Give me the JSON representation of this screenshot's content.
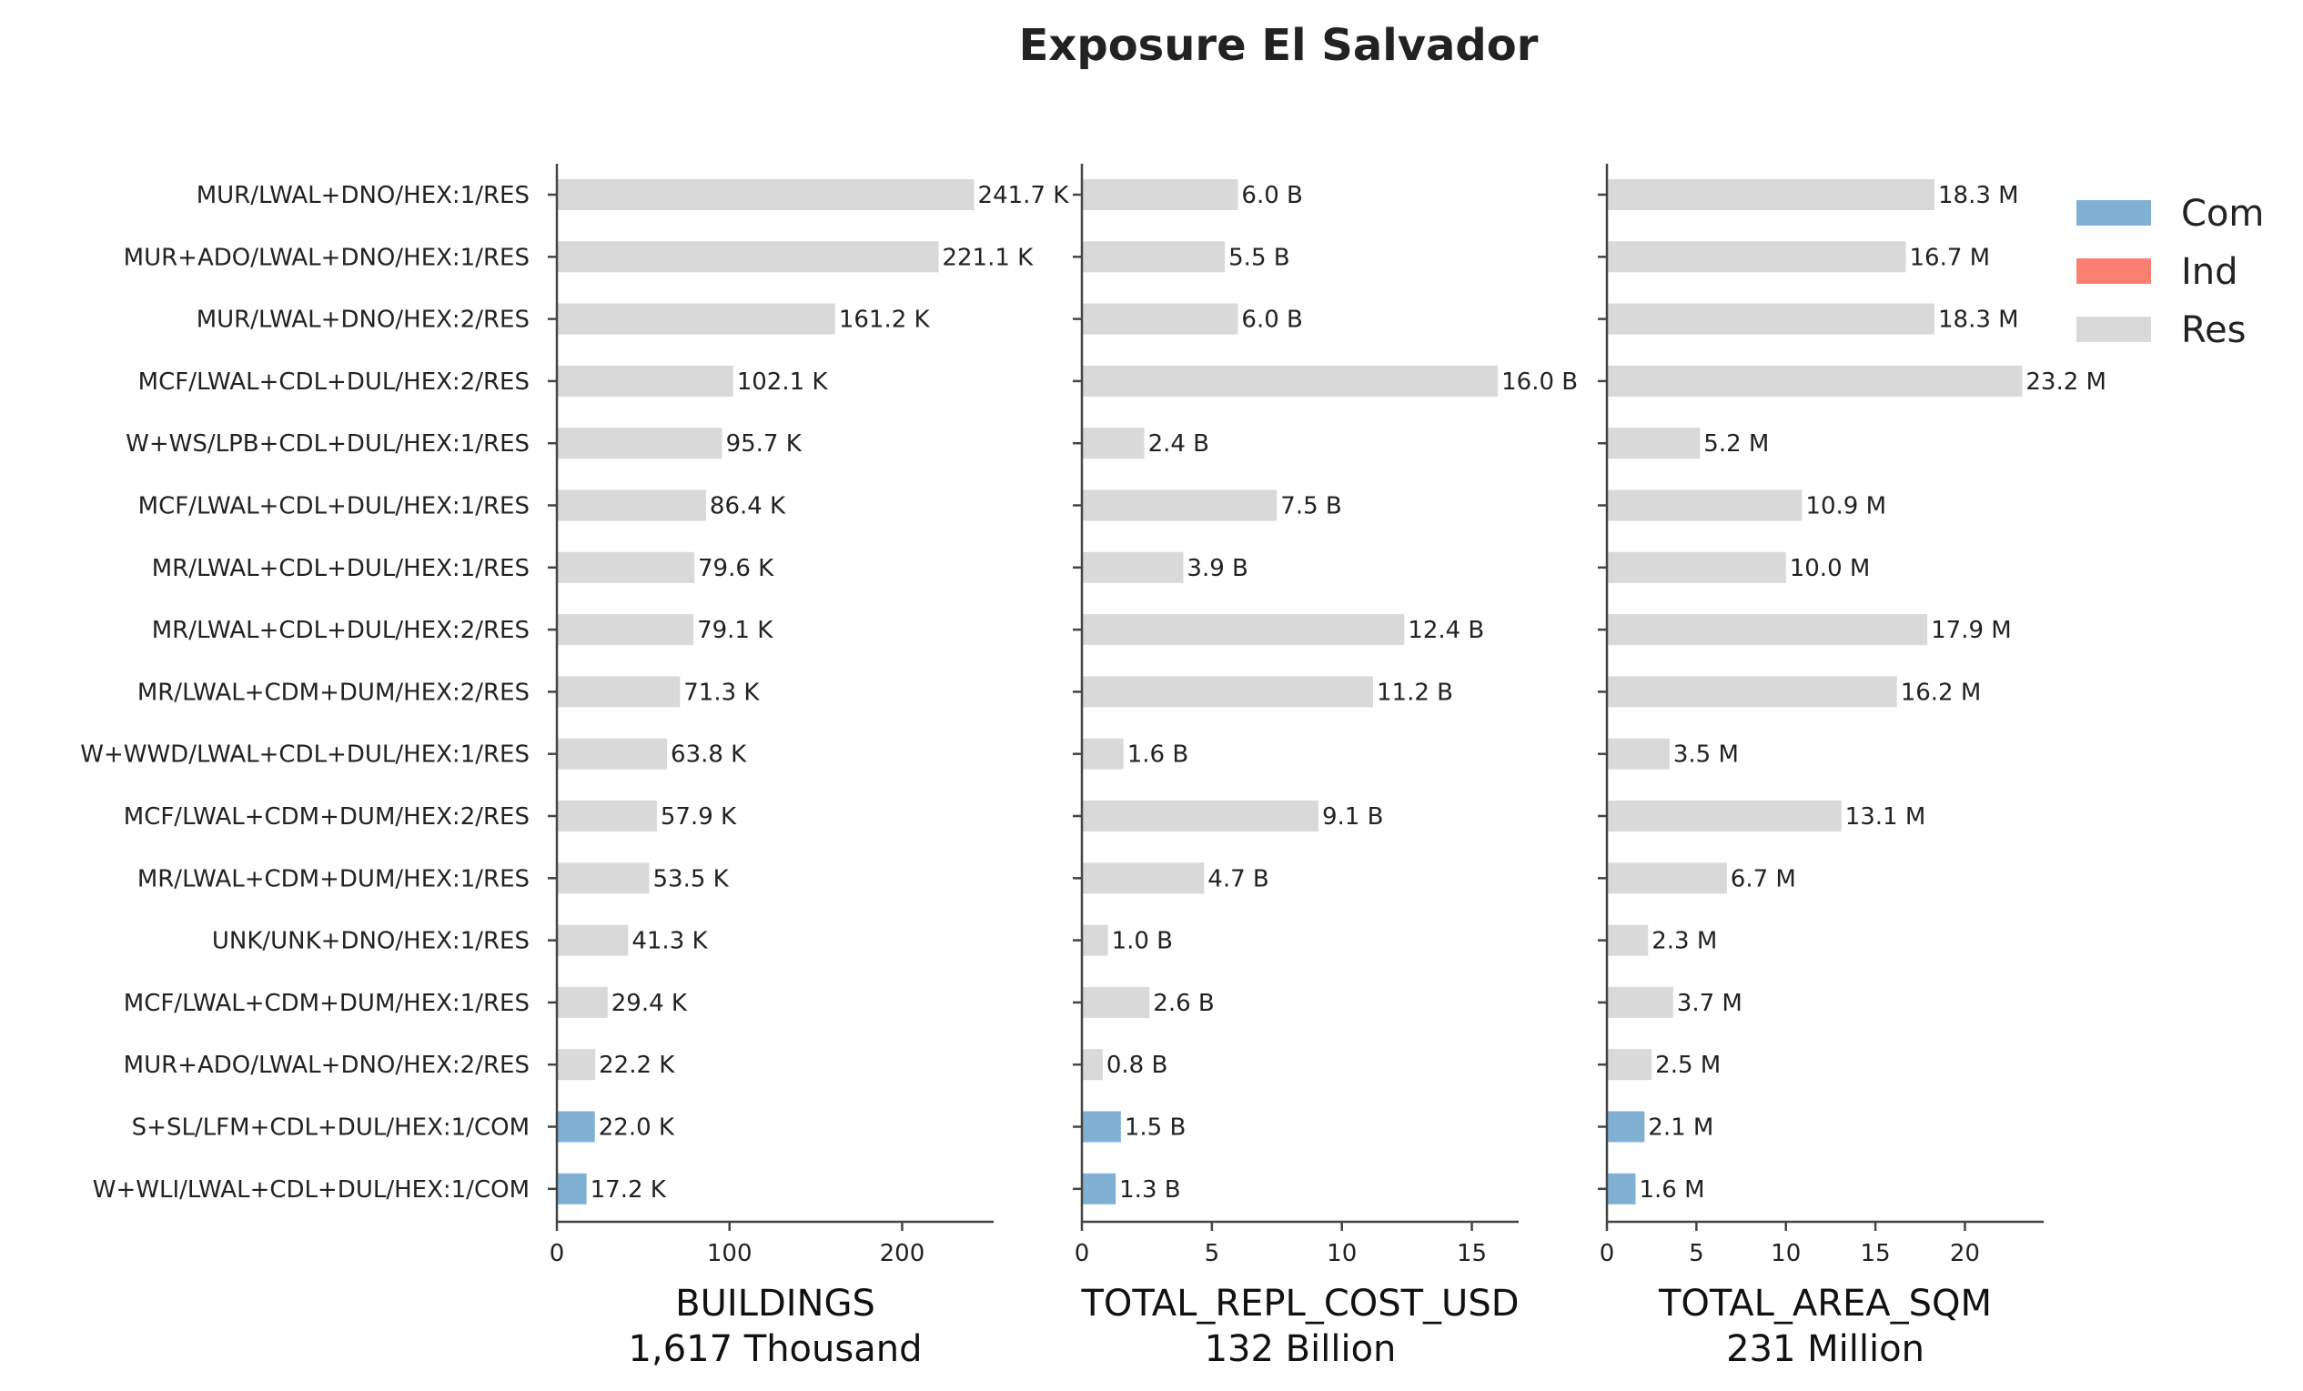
{
  "chart_data": {
    "type": "bar",
    "orientation": "horizontal",
    "title": "Exposure El Salvador",
    "categories": [
      "MUR/LWAL+DNO/HEX:1/RES",
      "MUR+ADO/LWAL+DNO/HEX:1/RES",
      "MUR/LWAL+DNO/HEX:2/RES",
      "MCF/LWAL+CDL+DUL/HEX:2/RES",
      "W+WS/LPB+CDL+DUL/HEX:1/RES",
      "MCF/LWAL+CDL+DUL/HEX:1/RES",
      "MR/LWAL+CDL+DUL/HEX:1/RES",
      "MR/LWAL+CDL+DUL/HEX:2/RES",
      "MR/LWAL+CDM+DUM/HEX:2/RES",
      "W+WWD/LWAL+CDL+DUL/HEX:1/RES",
      "MCF/LWAL+CDM+DUM/HEX:2/RES",
      "MR/LWAL+CDM+DUM/HEX:1/RES",
      "UNK/UNK+DNO/HEX:1/RES",
      "MCF/LWAL+CDM+DUM/HEX:1/RES",
      "MUR+ADO/LWAL+DNO/HEX:2/RES",
      "S+SL/LFM+CDL+DUL/HEX:1/COM",
      "W+WLI/LWAL+CDL+DUL/HEX:1/COM"
    ],
    "occupancy": [
      "Res",
      "Res",
      "Res",
      "Res",
      "Res",
      "Res",
      "Res",
      "Res",
      "Res",
      "Res",
      "Res",
      "Res",
      "Res",
      "Res",
      "Res",
      "Com",
      "Com"
    ],
    "legend": {
      "placement": "top-right",
      "entries": [
        {
          "name": "Com",
          "color": "#80b1d3"
        },
        {
          "name": "Ind",
          "color": "#fb8072"
        },
        {
          "name": "Res",
          "color": "#d9d9d9"
        }
      ]
    },
    "panels": [
      {
        "xlabel": "BUILDINGS",
        "total": "1,617 Thousand",
        "values": [
          241.7,
          221.1,
          161.2,
          102.1,
          95.7,
          86.4,
          79.6,
          79.1,
          71.3,
          63.8,
          57.9,
          53.5,
          41.3,
          29.4,
          22.2,
          22.0,
          17.2
        ],
        "value_labels": [
          "241.7 K",
          "221.1 K",
          "161.2 K",
          "102.1 K",
          "95.7 K",
          "86.4 K",
          "79.6 K",
          "79.1 K",
          "71.3 K",
          "63.8 K",
          "57.9 K",
          "53.5 K",
          "41.3 K",
          "29.4 K",
          "22.2 K",
          "22.0 K",
          "17.2 K"
        ],
        "xlim": [
          0,
          253
        ],
        "ticks": [
          0,
          100,
          200
        ],
        "tick_labels": [
          "0",
          "100",
          "200"
        ]
      },
      {
        "xlabel": "TOTAL_REPL_COST_USD",
        "total": "132 Billion",
        "values": [
          6.0,
          5.5,
          6.0,
          16.0,
          2.4,
          7.5,
          3.9,
          12.4,
          11.2,
          1.6,
          9.1,
          4.7,
          1.0,
          2.6,
          0.8,
          1.5,
          1.3
        ],
        "value_labels": [
          "6.0 B",
          "5.5 B",
          "6.0 B",
          "16.0 B",
          "2.4 B",
          "7.5 B",
          "3.9 B",
          "12.4 B",
          "11.2 B",
          "1.6 B",
          "9.1 B",
          "4.7 B",
          "1.0 B",
          "2.6 B",
          "0.8 B",
          "1.5 B",
          "1.3 B"
        ],
        "xlim": [
          0,
          16.8
        ],
        "ticks": [
          0,
          5,
          10,
          15
        ],
        "tick_labels": [
          "0",
          "5",
          "10",
          "15"
        ]
      },
      {
        "xlabel": "TOTAL_AREA_SQM",
        "total": "231 Million",
        "values": [
          18.3,
          16.7,
          18.3,
          23.2,
          5.2,
          10.9,
          10.0,
          17.9,
          16.2,
          3.5,
          13.1,
          6.7,
          2.3,
          3.7,
          2.5,
          2.1,
          1.6
        ],
        "value_labels": [
          "18.3 M",
          "16.7 M",
          "18.3 M",
          "23.2 M",
          "5.2 M",
          "10.9 M",
          "10.0 M",
          "17.9 M",
          "16.2 M",
          "3.5 M",
          "13.1 M",
          "6.7 M",
          "2.3 M",
          "3.7 M",
          "2.5 M",
          "2.1 M",
          "1.6 M"
        ],
        "xlim": [
          0,
          24.4
        ],
        "ticks": [
          0,
          5,
          10,
          15,
          20
        ],
        "tick_labels": [
          "0",
          "5",
          "10",
          "15",
          "20"
        ]
      }
    ]
  }
}
